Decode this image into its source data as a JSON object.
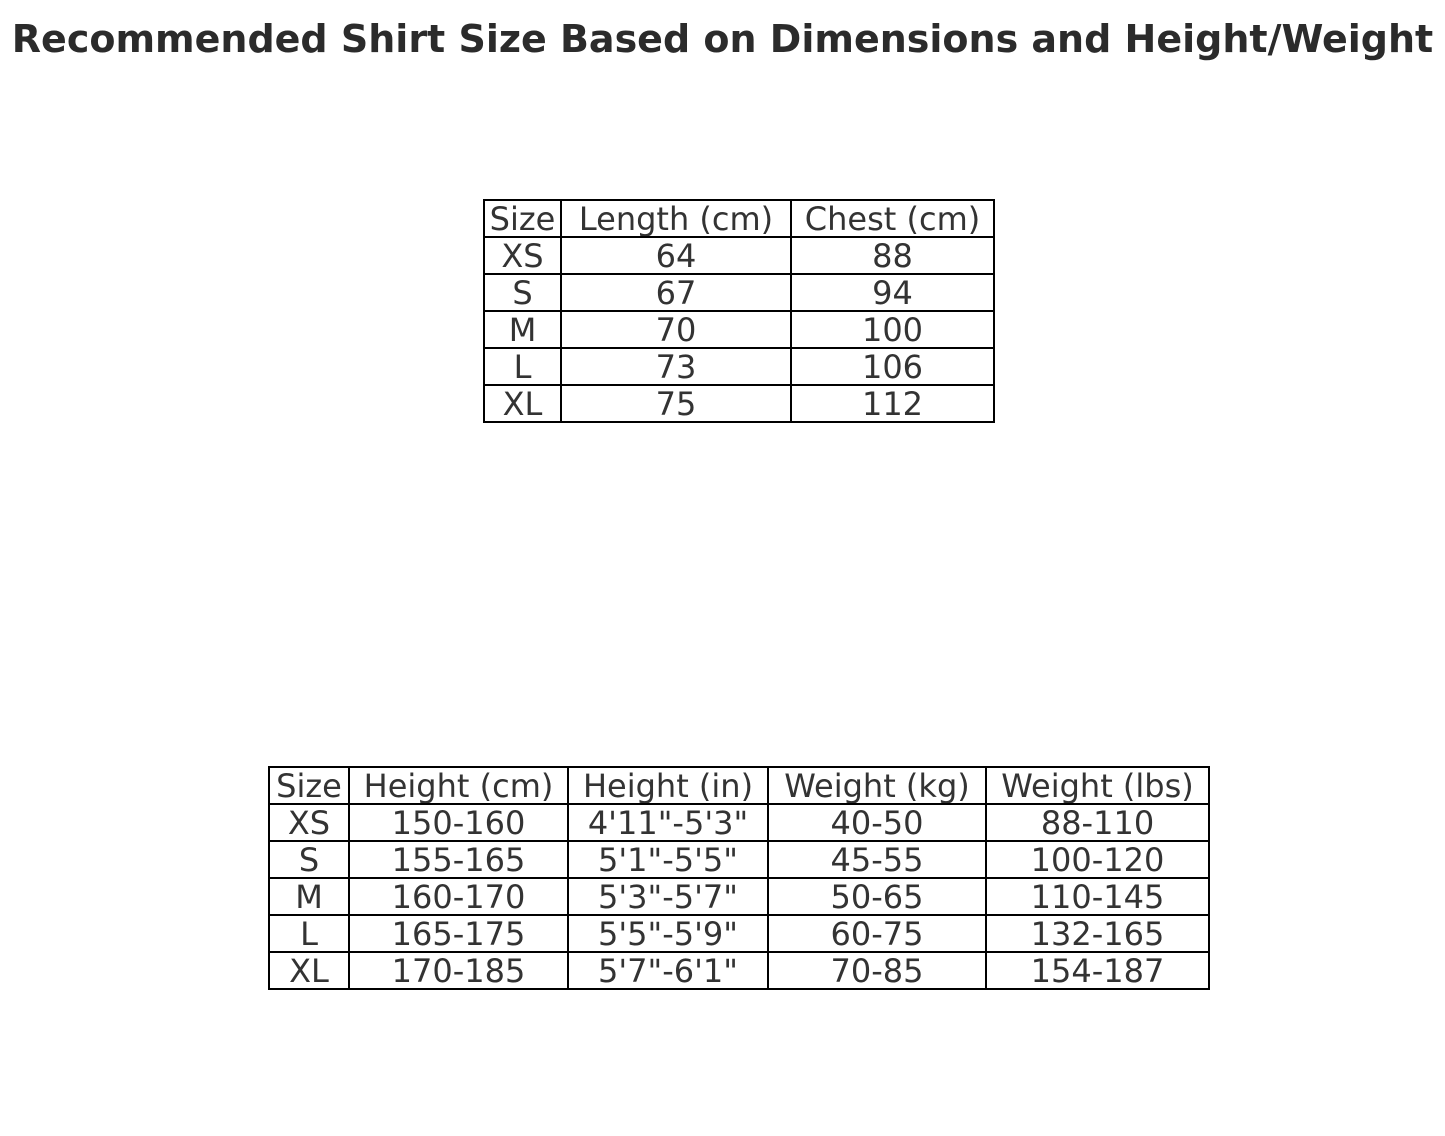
{
  "title": "Recommended Shirt Size Based on Dimensions and Height/Weight",
  "colors": {
    "background": "#ffffff",
    "title_text": "#2b2b2b",
    "table_text": "#333333",
    "table_border": "#000000"
  },
  "chart_data": [
    {
      "type": "table",
      "name": "shirt-dimensions-table",
      "columns": [
        "Size",
        "Length (cm)",
        "Chest (cm)"
      ],
      "rows": [
        [
          "XS",
          "64",
          "88"
        ],
        [
          "S",
          "67",
          "94"
        ],
        [
          "M",
          "70",
          "100"
        ],
        [
          "L",
          "73",
          "106"
        ],
        [
          "XL",
          "75",
          "112"
        ]
      ]
    },
    {
      "type": "table",
      "name": "height-weight-table",
      "columns": [
        "Size",
        "Height (cm)",
        "Height (in)",
        "Weight (kg)",
        "Weight (lbs)"
      ],
      "rows": [
        [
          "XS",
          "150-160",
          "4'11\"-5'3\"",
          "40-50",
          "88-110"
        ],
        [
          "S",
          "155-165",
          "5'1\"-5'5\"",
          "45-55",
          "100-120"
        ],
        [
          "M",
          "160-170",
          "5'3\"-5'7\"",
          "50-65",
          "110-145"
        ],
        [
          "L",
          "165-175",
          "5'5\"-5'9\"",
          "60-75",
          "132-165"
        ],
        [
          "XL",
          "170-185",
          "5'7\"-6'1\"",
          "70-85",
          "154-187"
        ]
      ]
    }
  ]
}
